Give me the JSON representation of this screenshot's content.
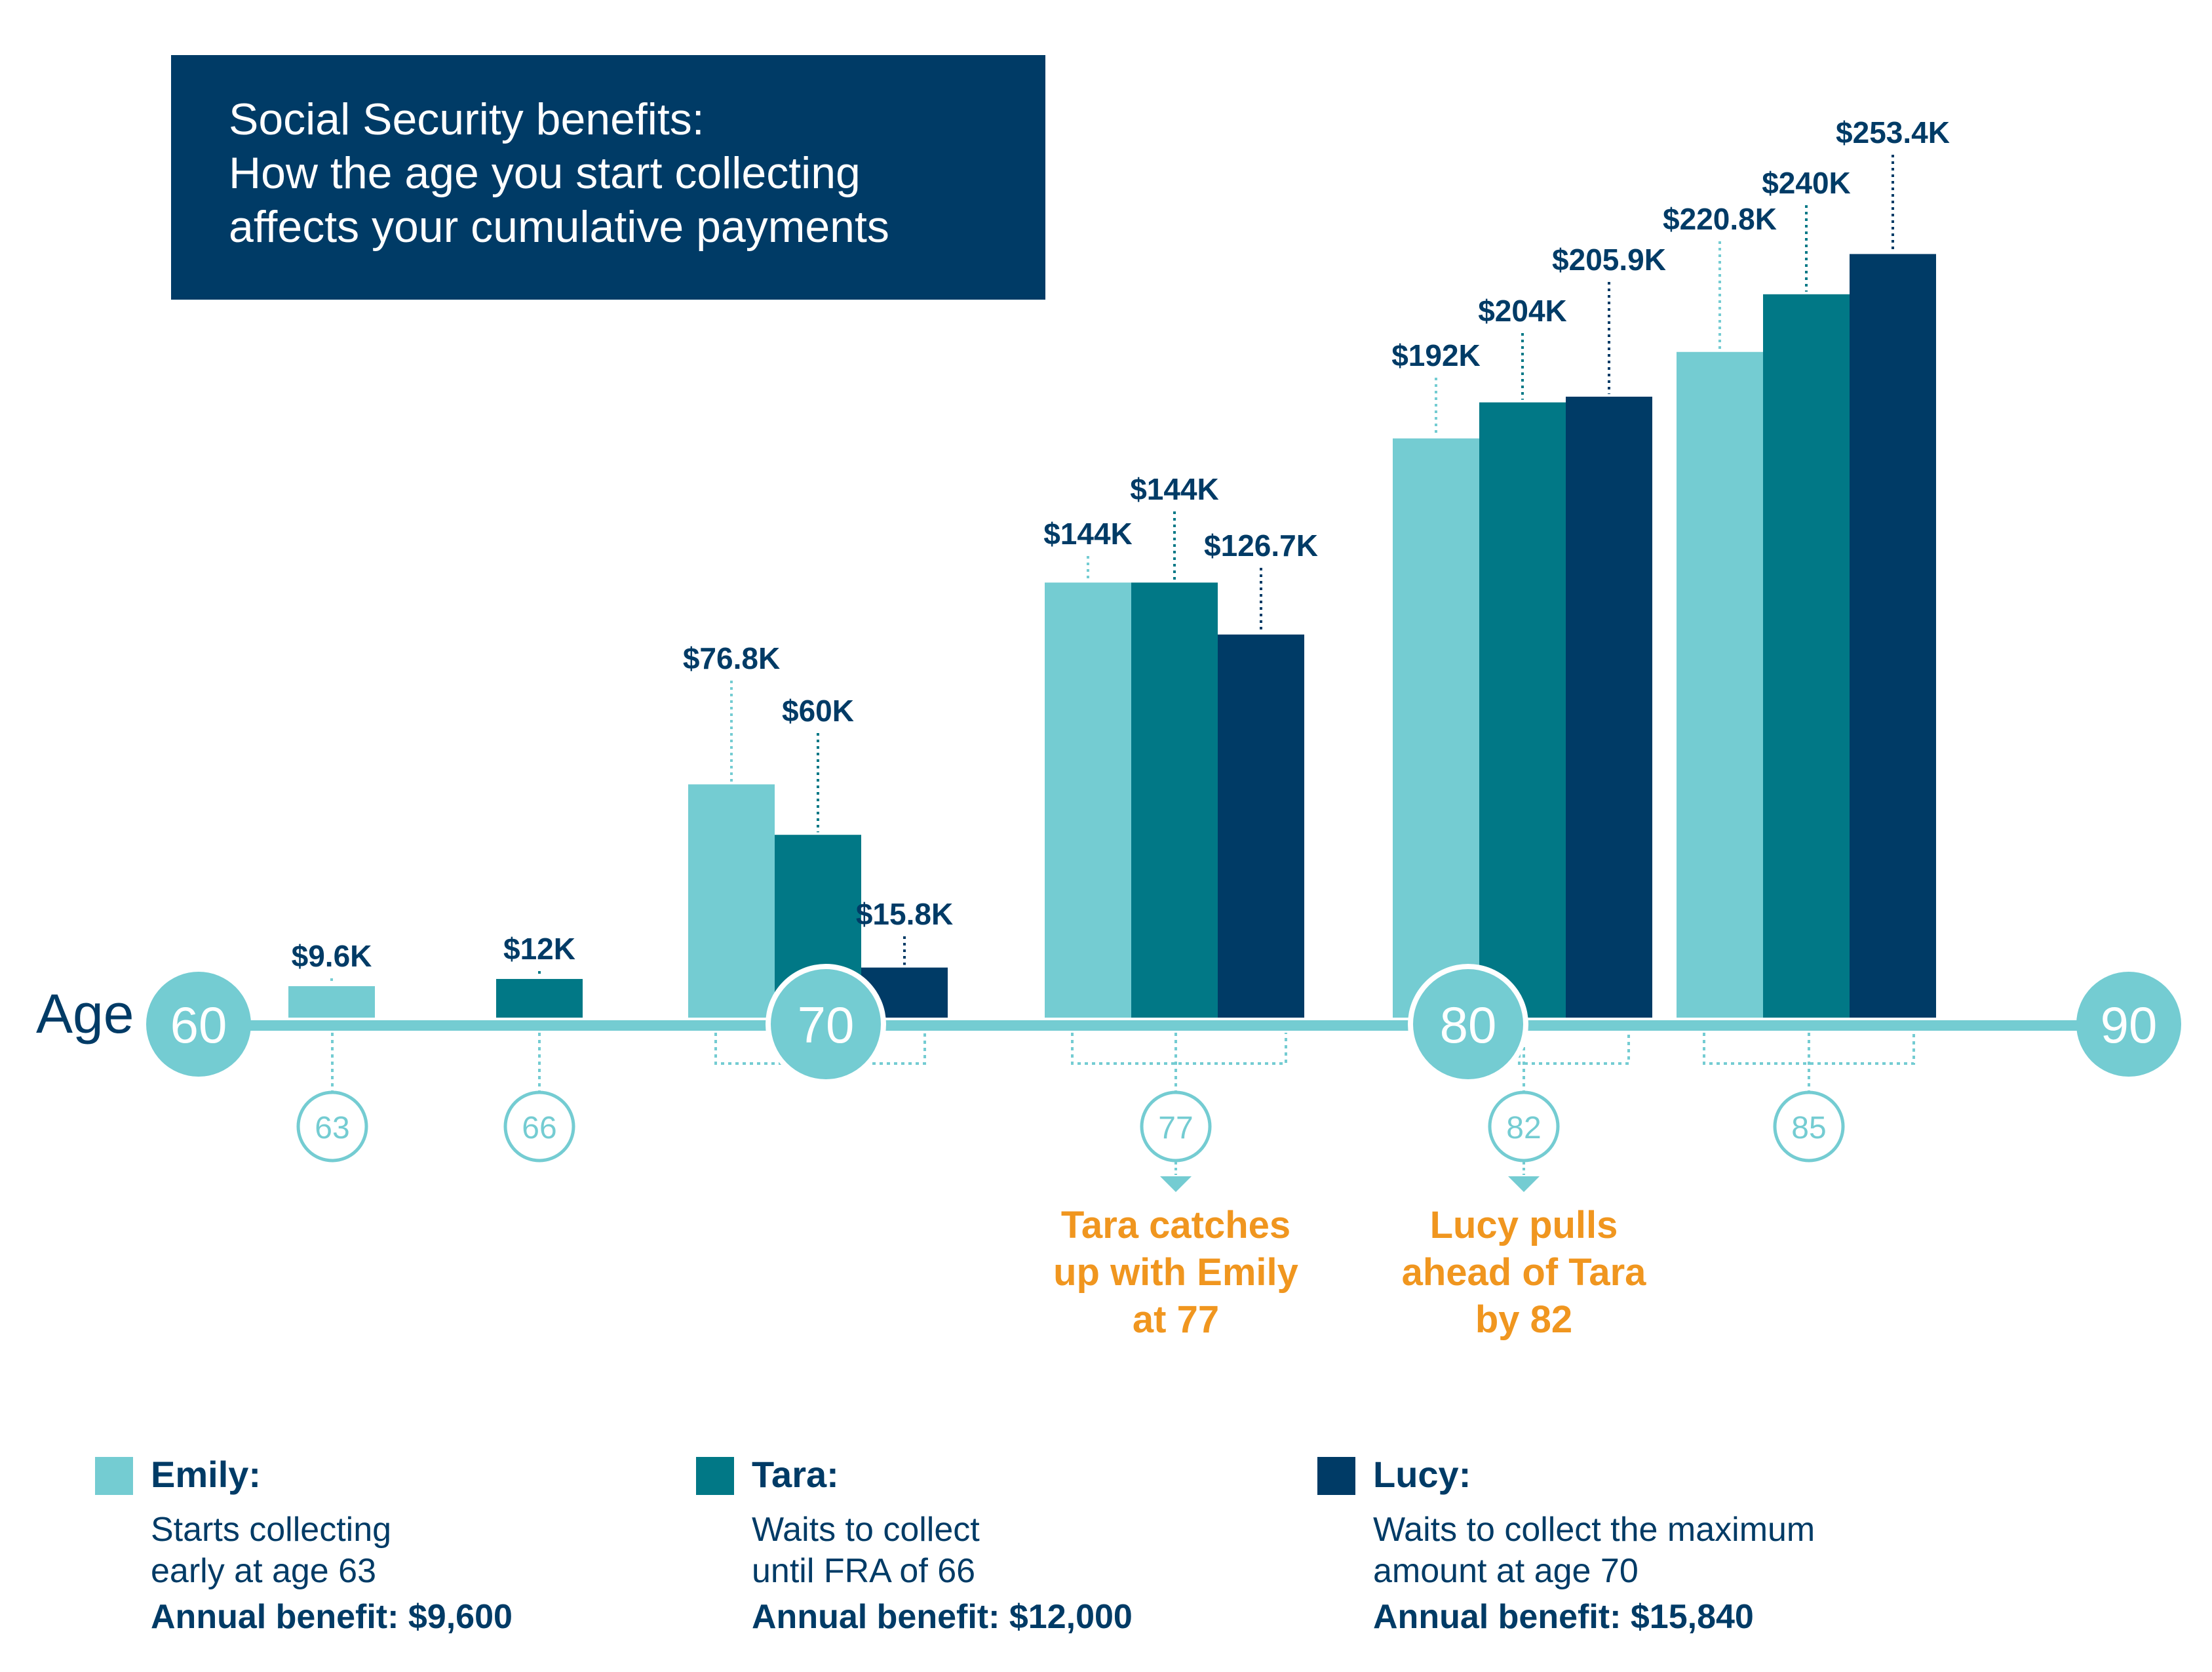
{
  "colors": {
    "emily": "#74CCD2",
    "tara": "#017886",
    "lucy": "#003B66",
    "title_bg": "#003B66",
    "axis": "#74CCD2",
    "label": "#003B66",
    "annotation": "#F0961F"
  },
  "chart_data": {
    "type": "bar",
    "title": [
      "Social Security benefits:",
      "How the age you start collecting",
      "affects your cumulative payments"
    ],
    "axis_label": "Age",
    "ylabel": "",
    "ylim": [
      0,
      270
    ],
    "unit": "thousand USD",
    "categories": [
      63,
      66,
      70,
      77,
      82,
      85
    ],
    "category_labels": [
      "63",
      "66",
      "",
      "77",
      "82",
      "85"
    ],
    "decade_markers": [
      {
        "age": 60,
        "label": "60"
      },
      {
        "age": 70,
        "label": "70"
      },
      {
        "age": 80,
        "label": "80"
      },
      {
        "age": 90,
        "label": "90"
      }
    ],
    "series": [
      {
        "name": "Emily",
        "color_key": "emily",
        "values": [
          9.6,
          null,
          76.8,
          144,
          192,
          220.8
        ],
        "labels": [
          "$9.6K",
          null,
          "$76.8K",
          "$144K",
          "$192K",
          "$220.8K"
        ]
      },
      {
        "name": "Tara",
        "color_key": "tara",
        "values": [
          null,
          12,
          60,
          144,
          204,
          240
        ],
        "labels": [
          null,
          "$12K",
          "$60K",
          "$144K",
          "$204K",
          "$240K"
        ]
      },
      {
        "name": "Lucy",
        "color_key": "lucy",
        "values": [
          null,
          null,
          15.8,
          126.7,
          205.9,
          253.4
        ],
        "labels": [
          null,
          null,
          "$15.8K",
          "$126.7K",
          "$205.9K",
          "$253.4K"
        ]
      }
    ],
    "annotations": [
      {
        "category": 77,
        "lines": [
          "Tara catches",
          "up with Emily",
          "at 77"
        ]
      },
      {
        "category": 82,
        "lines": [
          "Lucy pulls",
          "ahead of Tara",
          "by 82"
        ]
      }
    ],
    "legend": [
      {
        "name": "Emily:",
        "color_key": "emily",
        "desc": [
          "Starts collecting",
          "early at age 63"
        ],
        "benefit": "Annual benefit: $9,600"
      },
      {
        "name": "Tara:",
        "color_key": "tara",
        "desc": [
          "Waits to collect",
          "until FRA of 66"
        ],
        "benefit": "Annual benefit: $12,000"
      },
      {
        "name": "Lucy:",
        "color_key": "lucy",
        "desc": [
          "Waits to collect the maximum",
          "amount at age 70"
        ],
        "benefit": "Annual benefit: $15,840"
      }
    ]
  }
}
